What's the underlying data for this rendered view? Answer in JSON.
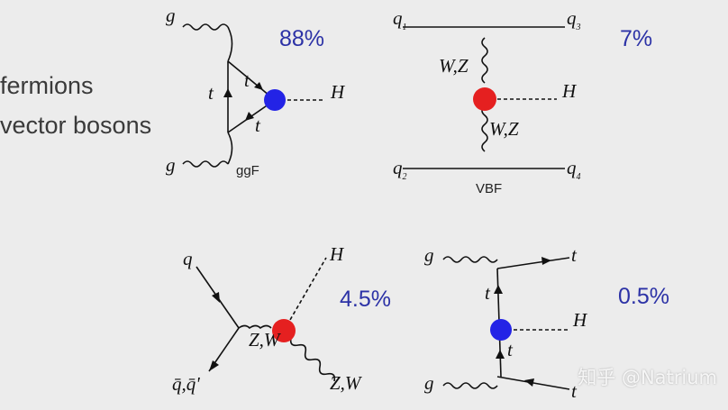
{
  "legend": {
    "fermions": "fermions",
    "vector_bosons": "vector bosons"
  },
  "colors": {
    "fermion_vertex": "#2323e6",
    "boson_vertex": "#e52020",
    "percent_text": "#2c32a6"
  },
  "diagrams": {
    "ggF": {
      "percent": "88%",
      "caption": "ggF",
      "g_top": "g",
      "g_bottom": "g",
      "t_left": "t",
      "t_top": "t",
      "t_bottom": "t",
      "higgs": "H"
    },
    "VBF": {
      "percent": "7%",
      "caption": "VBF",
      "q1": "q",
      "q1_sub": "1",
      "q2": "q",
      "q2_sub": "2",
      "q3": "q",
      "q3_sub": "3",
      "q4": "q",
      "q4_sub": "4",
      "wz_top": "W,Z",
      "wz_bottom": "W,Z",
      "higgs": "H"
    },
    "VH": {
      "percent": "4.5%",
      "q": "q",
      "qbar": "q̄,q̄'",
      "zw_mid": "Z,W",
      "zw_out": "Z,W",
      "higgs": "H"
    },
    "ttH": {
      "percent": "0.5%",
      "g_top": "g",
      "g_bottom": "g",
      "t_top_right": "t",
      "t_bottom_right": "t",
      "t_mid_top": "t",
      "t_mid_bottom": "t",
      "higgs": "H"
    }
  },
  "watermark": "知乎 @Natrium"
}
